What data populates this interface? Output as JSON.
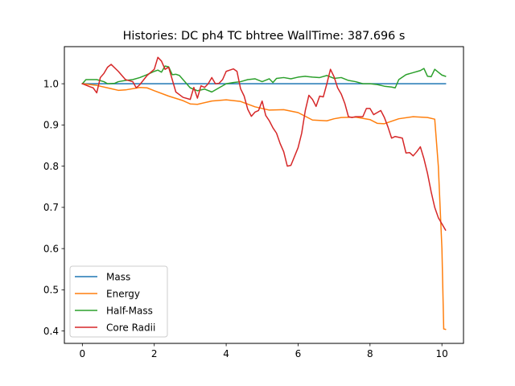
{
  "chart_data": {
    "type": "line",
    "title": "Histories: DC ph4 TC bhtree WallTime: 387.696 s",
    "xlabel": "",
    "ylabel": "",
    "xlim": [
      -0.5,
      10.6
    ],
    "ylim": [
      0.37,
      1.09
    ],
    "xticks": [
      0,
      2,
      4,
      6,
      8,
      10
    ],
    "xtick_labels": [
      "0",
      "2",
      "4",
      "6",
      "8",
      "10"
    ],
    "yticks": [
      0.4,
      0.5,
      0.6,
      0.7,
      0.8,
      0.9,
      1.0
    ],
    "ytick_labels": [
      "0.4",
      "0.5",
      "0.6",
      "0.7",
      "0.8",
      "0.9",
      "1.0"
    ],
    "grid": false,
    "legend_position": "lower-left",
    "series": [
      {
        "name": "Mass",
        "color": "#1f77b4",
        "x": [
          0,
          10.1
        ],
        "y": [
          1.0,
          1.0
        ]
      },
      {
        "name": "Energy",
        "color": "#ff7f0e",
        "x": [
          0,
          0.4,
          0.8,
          1.0,
          1.2,
          1.6,
          1.8,
          2.0,
          2.4,
          2.8,
          3.0,
          3.2,
          3.6,
          4.0,
          4.4,
          4.8,
          5.2,
          5.6,
          6.0,
          6.4,
          6.8,
          7.0,
          7.2,
          7.6,
          8.0,
          8.2,
          8.4,
          8.8,
          9.2,
          9.6,
          9.8,
          9.9,
          10.0,
          10.05,
          10.1
        ],
        "y": [
          1.0,
          0.996,
          0.988,
          0.984,
          0.985,
          0.991,
          0.99,
          0.983,
          0.97,
          0.959,
          0.951,
          0.95,
          0.958,
          0.961,
          0.957,
          0.944,
          0.936,
          0.937,
          0.93,
          0.912,
          0.91,
          0.915,
          0.918,
          0.919,
          0.913,
          0.904,
          0.903,
          0.915,
          0.92,
          0.918,
          0.914,
          0.8,
          0.6,
          0.405,
          0.404
        ]
      },
      {
        "name": "Half-Mass",
        "color": "#2ca02c",
        "x": [
          0,
          0.1,
          0.4,
          0.6,
          0.7,
          0.9,
          1.0,
          1.2,
          1.4,
          1.6,
          1.8,
          2.0,
          2.1,
          2.2,
          2.3,
          2.4,
          2.5,
          2.6,
          2.7,
          2.8,
          3.0,
          3.2,
          3.4,
          3.6,
          3.8,
          4.0,
          4.2,
          4.4,
          4.6,
          4.8,
          5.0,
          5.2,
          5.3,
          5.4,
          5.6,
          5.8,
          6.0,
          6.2,
          6.4,
          6.6,
          6.8,
          7.0,
          7.2,
          7.4,
          7.6,
          7.8,
          8.0,
          8.2,
          8.4,
          8.6,
          8.7,
          8.8,
          9.0,
          9.2,
          9.4,
          9.5,
          9.6,
          9.7,
          9.8,
          9.9,
          10.0,
          10.1
        ],
        "y": [
          1.0,
          1.01,
          1.01,
          1.005,
          1.0,
          1.001,
          1.005,
          1.008,
          1.01,
          1.015,
          1.022,
          1.03,
          1.033,
          1.028,
          1.043,
          1.041,
          1.022,
          1.023,
          1.02,
          1.01,
          0.99,
          0.983,
          0.987,
          0.98,
          0.99,
          1.0,
          1.003,
          1.005,
          1.01,
          1.012,
          1.005,
          1.012,
          1.003,
          1.013,
          1.015,
          1.012,
          1.016,
          1.018,
          1.016,
          1.015,
          1.02,
          1.013,
          1.015,
          1.008,
          1.005,
          1.0,
          1.0,
          0.998,
          0.994,
          0.992,
          0.99,
          1.01,
          1.022,
          1.027,
          1.032,
          1.037,
          1.018,
          1.017,
          1.035,
          1.028,
          1.021,
          1.018
        ]
      },
      {
        "name": "Core Radii",
        "color": "#d62728",
        "x": [
          0,
          0.2,
          0.3,
          0.4,
          0.5,
          0.6,
          0.7,
          0.8,
          1.0,
          1.2,
          1.4,
          1.5,
          1.6,
          1.8,
          2.0,
          2.1,
          2.2,
          2.3,
          2.4,
          2.6,
          2.8,
          3.0,
          3.1,
          3.2,
          3.3,
          3.4,
          3.5,
          3.6,
          3.7,
          3.8,
          3.9,
          4.0,
          4.1,
          4.2,
          4.3,
          4.4,
          4.5,
          4.6,
          4.7,
          4.8,
          4.9,
          5.0,
          5.1,
          5.2,
          5.3,
          5.4,
          5.5,
          5.6,
          5.7,
          5.8,
          6.0,
          6.1,
          6.2,
          6.3,
          6.4,
          6.5,
          6.6,
          6.7,
          6.8,
          6.9,
          7.0,
          7.1,
          7.2,
          7.3,
          7.4,
          7.5,
          7.6,
          7.8,
          7.9,
          8.0,
          8.1,
          8.2,
          8.3,
          8.4,
          8.5,
          8.6,
          8.7,
          8.8,
          8.9,
          9.0,
          9.1,
          9.2,
          9.3,
          9.4,
          9.5,
          9.6,
          9.7,
          9.8,
          9.9,
          10.0,
          10.1
        ],
        "y": [
          1.0,
          0.993,
          0.99,
          0.978,
          1.015,
          1.025,
          1.04,
          1.047,
          1.03,
          1.01,
          1.005,
          0.99,
          0.998,
          1.02,
          1.035,
          1.064,
          1.055,
          1.035,
          1.04,
          0.98,
          0.967,
          0.962,
          0.991,
          0.965,
          0.995,
          0.991,
          1.0,
          1.015,
          1.0,
          1.001,
          1.01,
          1.03,
          1.033,
          1.036,
          1.03,
          0.988,
          0.97,
          0.938,
          0.921,
          0.931,
          0.935,
          0.958,
          0.923,
          0.91,
          0.893,
          0.88,
          0.855,
          0.835,
          0.8,
          0.802,
          0.845,
          0.88,
          0.935,
          0.972,
          0.962,
          0.945,
          0.97,
          0.968,
          1.0,
          1.035,
          1.017,
          0.99,
          0.975,
          0.952,
          0.92,
          0.918,
          0.92,
          0.92,
          0.94,
          0.94,
          0.925,
          0.93,
          0.935,
          0.918,
          0.895,
          0.868,
          0.872,
          0.87,
          0.868,
          0.832,
          0.833,
          0.825,
          0.835,
          0.847,
          0.818,
          0.782,
          0.738,
          0.7,
          0.675,
          0.66,
          0.645
        ]
      }
    ]
  }
}
